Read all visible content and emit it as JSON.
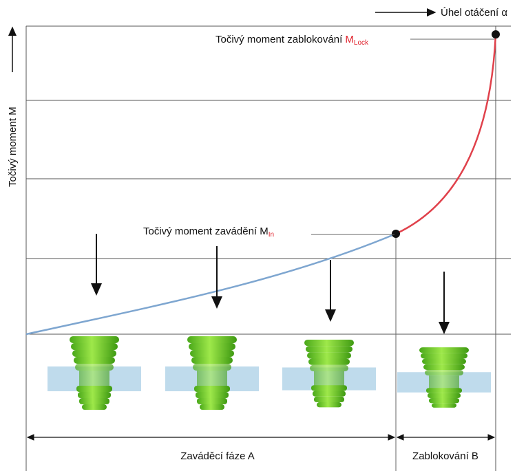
{
  "axes": {
    "x_label": "Úhel otáčení α",
    "y_label": "Točivý moment M"
  },
  "labels": {
    "lock": {
      "text": "Točivý moment zablokování",
      "symbol": "M",
      "subscript": "Lock"
    },
    "insert": {
      "text": "Točivý moment zavádění",
      "symbol": "M",
      "subscript": "In"
    }
  },
  "phases": {
    "a": "Zaváděcí fáze A",
    "b": "Zablokování B"
  }
}
